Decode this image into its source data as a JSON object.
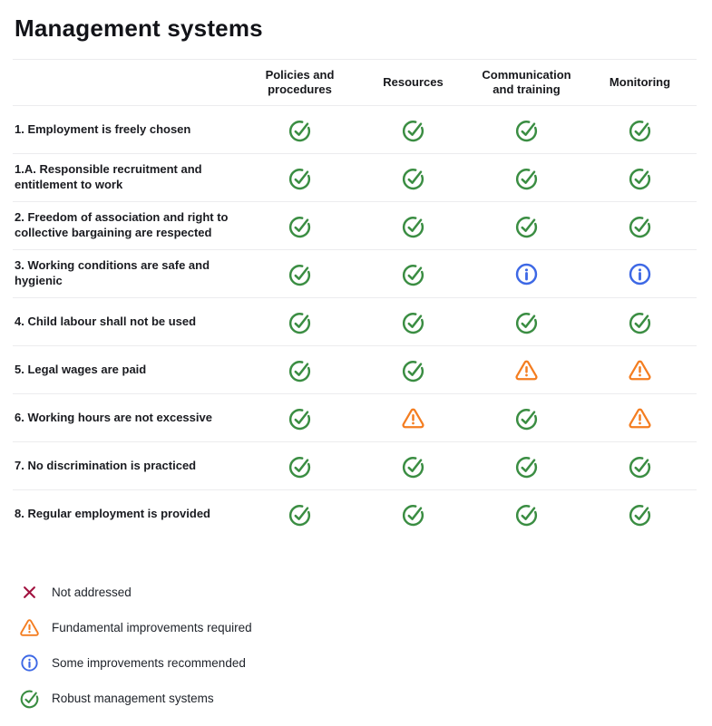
{
  "page": {
    "title": "Management systems"
  },
  "table": {
    "columns": [
      "Policies and procedures",
      "Resources",
      "Communication and training",
      "Monitoring"
    ],
    "rows": [
      {
        "label": "1. Employment is freely chosen",
        "statuses": [
          "check",
          "check",
          "check",
          "check"
        ]
      },
      {
        "label": "1.A. Responsible recruitment and entitlement to work",
        "statuses": [
          "check",
          "check",
          "check",
          "check"
        ]
      },
      {
        "label": "2. Freedom of association and right to collective bargaining are respected",
        "statuses": [
          "check",
          "check",
          "check",
          "check"
        ]
      },
      {
        "label": "3. Working conditions are safe and hygienic",
        "statuses": [
          "check",
          "check",
          "info",
          "info"
        ]
      },
      {
        "label": "4. Child labour shall not be used",
        "statuses": [
          "check",
          "check",
          "check",
          "check"
        ]
      },
      {
        "label": "5. Legal wages are paid",
        "statuses": [
          "check",
          "check",
          "warning",
          "warning"
        ]
      },
      {
        "label": "6. Working hours are not excessive",
        "statuses": [
          "check",
          "warning",
          "check",
          "warning"
        ]
      },
      {
        "label": "7. No discrimination is practiced",
        "statuses": [
          "check",
          "check",
          "check",
          "check"
        ]
      },
      {
        "label": "8. Regular employment is provided",
        "statuses": [
          "check",
          "check",
          "check",
          "check"
        ]
      }
    ]
  },
  "legend": [
    {
      "status": "cross",
      "label": "Not addressed"
    },
    {
      "status": "warning",
      "label": "Fundamental improvements required"
    },
    {
      "status": "info",
      "label": "Some improvements recommended"
    },
    {
      "status": "check",
      "label": "Robust management systems"
    }
  ],
  "status_colors": {
    "check": "#3A8D42",
    "warning": "#F47D20",
    "info": "#3D68E5",
    "cross": "#A21340"
  },
  "icon_names": {
    "check": "check-circle-icon",
    "warning": "warning-triangle-icon",
    "info": "info-circle-icon",
    "cross": "x-icon"
  }
}
